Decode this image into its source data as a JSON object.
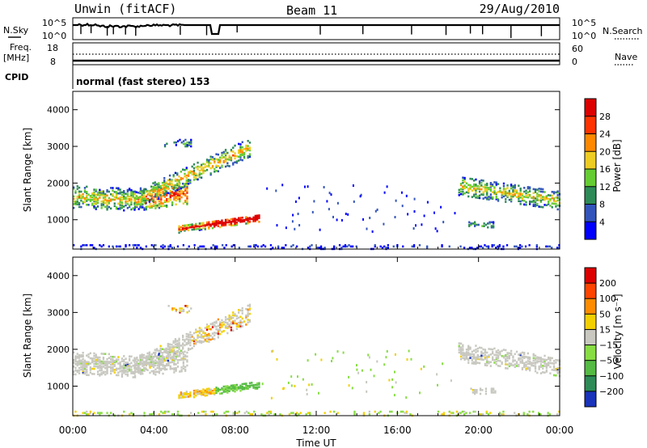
{
  "header": {
    "station": "Unwin (fitACF)",
    "beam": "Beam 11",
    "date": "29/Aug/2010"
  },
  "top_panels": {
    "nsky_label": "N.Sky",
    "nsky_ticks": [
      "10^5",
      "10^0"
    ],
    "nsearch_label": "N.Search",
    "nsearch_ticks": [
      "10^5",
      "10^0"
    ],
    "freq_label": "Freq.",
    "freq_unit": "[MHz]",
    "freq_ticks": [
      "18",
      "8"
    ],
    "nave_label": "Nave",
    "nave_ticks": [
      "60",
      "0"
    ],
    "cpid_label": "CPID",
    "cpid_value": "normal (fast stereo) 153"
  },
  "chart_data": [
    {
      "type": "heatmap",
      "name": "power",
      "ylabel": "Slant Range [km]",
      "yticks": [
        "1000",
        "2000",
        "3000",
        "4000"
      ],
      "ylim": [
        200,
        4500
      ],
      "xlim": [
        0,
        24
      ],
      "colorbar_label": "Power [dB]",
      "colorbar_ticks": [
        "4",
        "8",
        "12",
        "16",
        "20",
        "24",
        "28"
      ],
      "colors": [
        "#0000ff",
        "#3355bb",
        "#2e8b57",
        "#66cc33",
        "#eecc22",
        "#ff8800",
        "#ff3300",
        "#dd0000"
      ]
    },
    {
      "type": "heatmap",
      "name": "velocity",
      "ylabel": "Slant Range [km]",
      "yticks": [
        "1000",
        "2000",
        "3000",
        "4000"
      ],
      "ylim": [
        200,
        4500
      ],
      "xlim": [
        0,
        24
      ],
      "colorbar_label": "Velocity [m s⁻¹]",
      "colorbar_ticks": [
        "200",
        "100",
        "50",
        "15",
        "−15",
        "−50",
        "−100",
        "−200"
      ],
      "colors": [
        "#1a33bb",
        "#2e8b57",
        "#55bb44",
        "#88dd44",
        "#c8c8c0",
        "#f2d000",
        "#ff8c00",
        "#ff4400",
        "#dd0000"
      ],
      "xlabel": "Time UT",
      "xticks": [
        "00:00",
        "04:00",
        "08:00",
        "12:00",
        "16:00",
        "20:00",
        "00:00"
      ]
    }
  ]
}
